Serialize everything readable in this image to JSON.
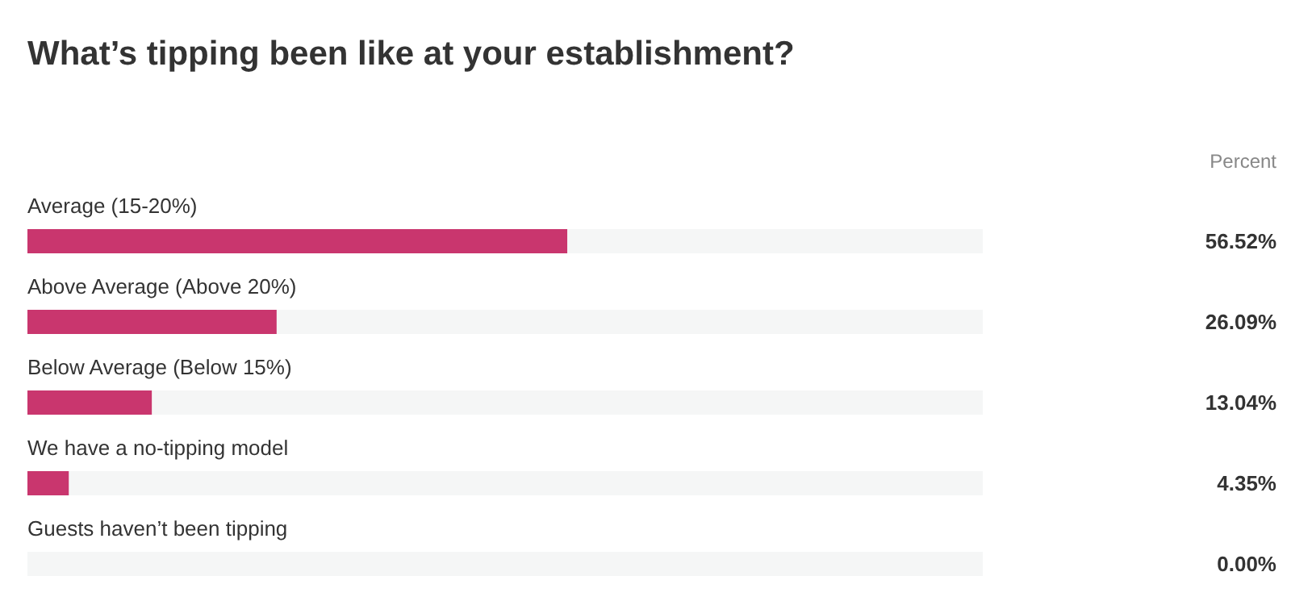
{
  "chart_data": {
    "type": "bar",
    "orientation": "horizontal",
    "stacked": true,
    "title": "What’s tipping been like at your establishment?",
    "annotations": [
      "Percent"
    ],
    "categories": [
      "Average (15-20%)",
      "Above Average (Above 20%)",
      "Below Average (Below 15%)",
      "We have a no-tipping model",
      "Guests haven’t been tipping"
    ],
    "series": [
      {
        "color": "#c9366e",
        "values": [
          56.52,
          26.09,
          13.04,
          4.35,
          0.0
        ],
        "value_labels": [
          "56.52%",
          "26.09%",
          "13.04%",
          "4.35%",
          "0.00%"
        ]
      },
      {
        "color": "#f5f6f6",
        "values": [
          43.48,
          73.91,
          86.96,
          95.65,
          100
        ]
      }
    ],
    "xlim": [
      0,
      100
    ]
  }
}
